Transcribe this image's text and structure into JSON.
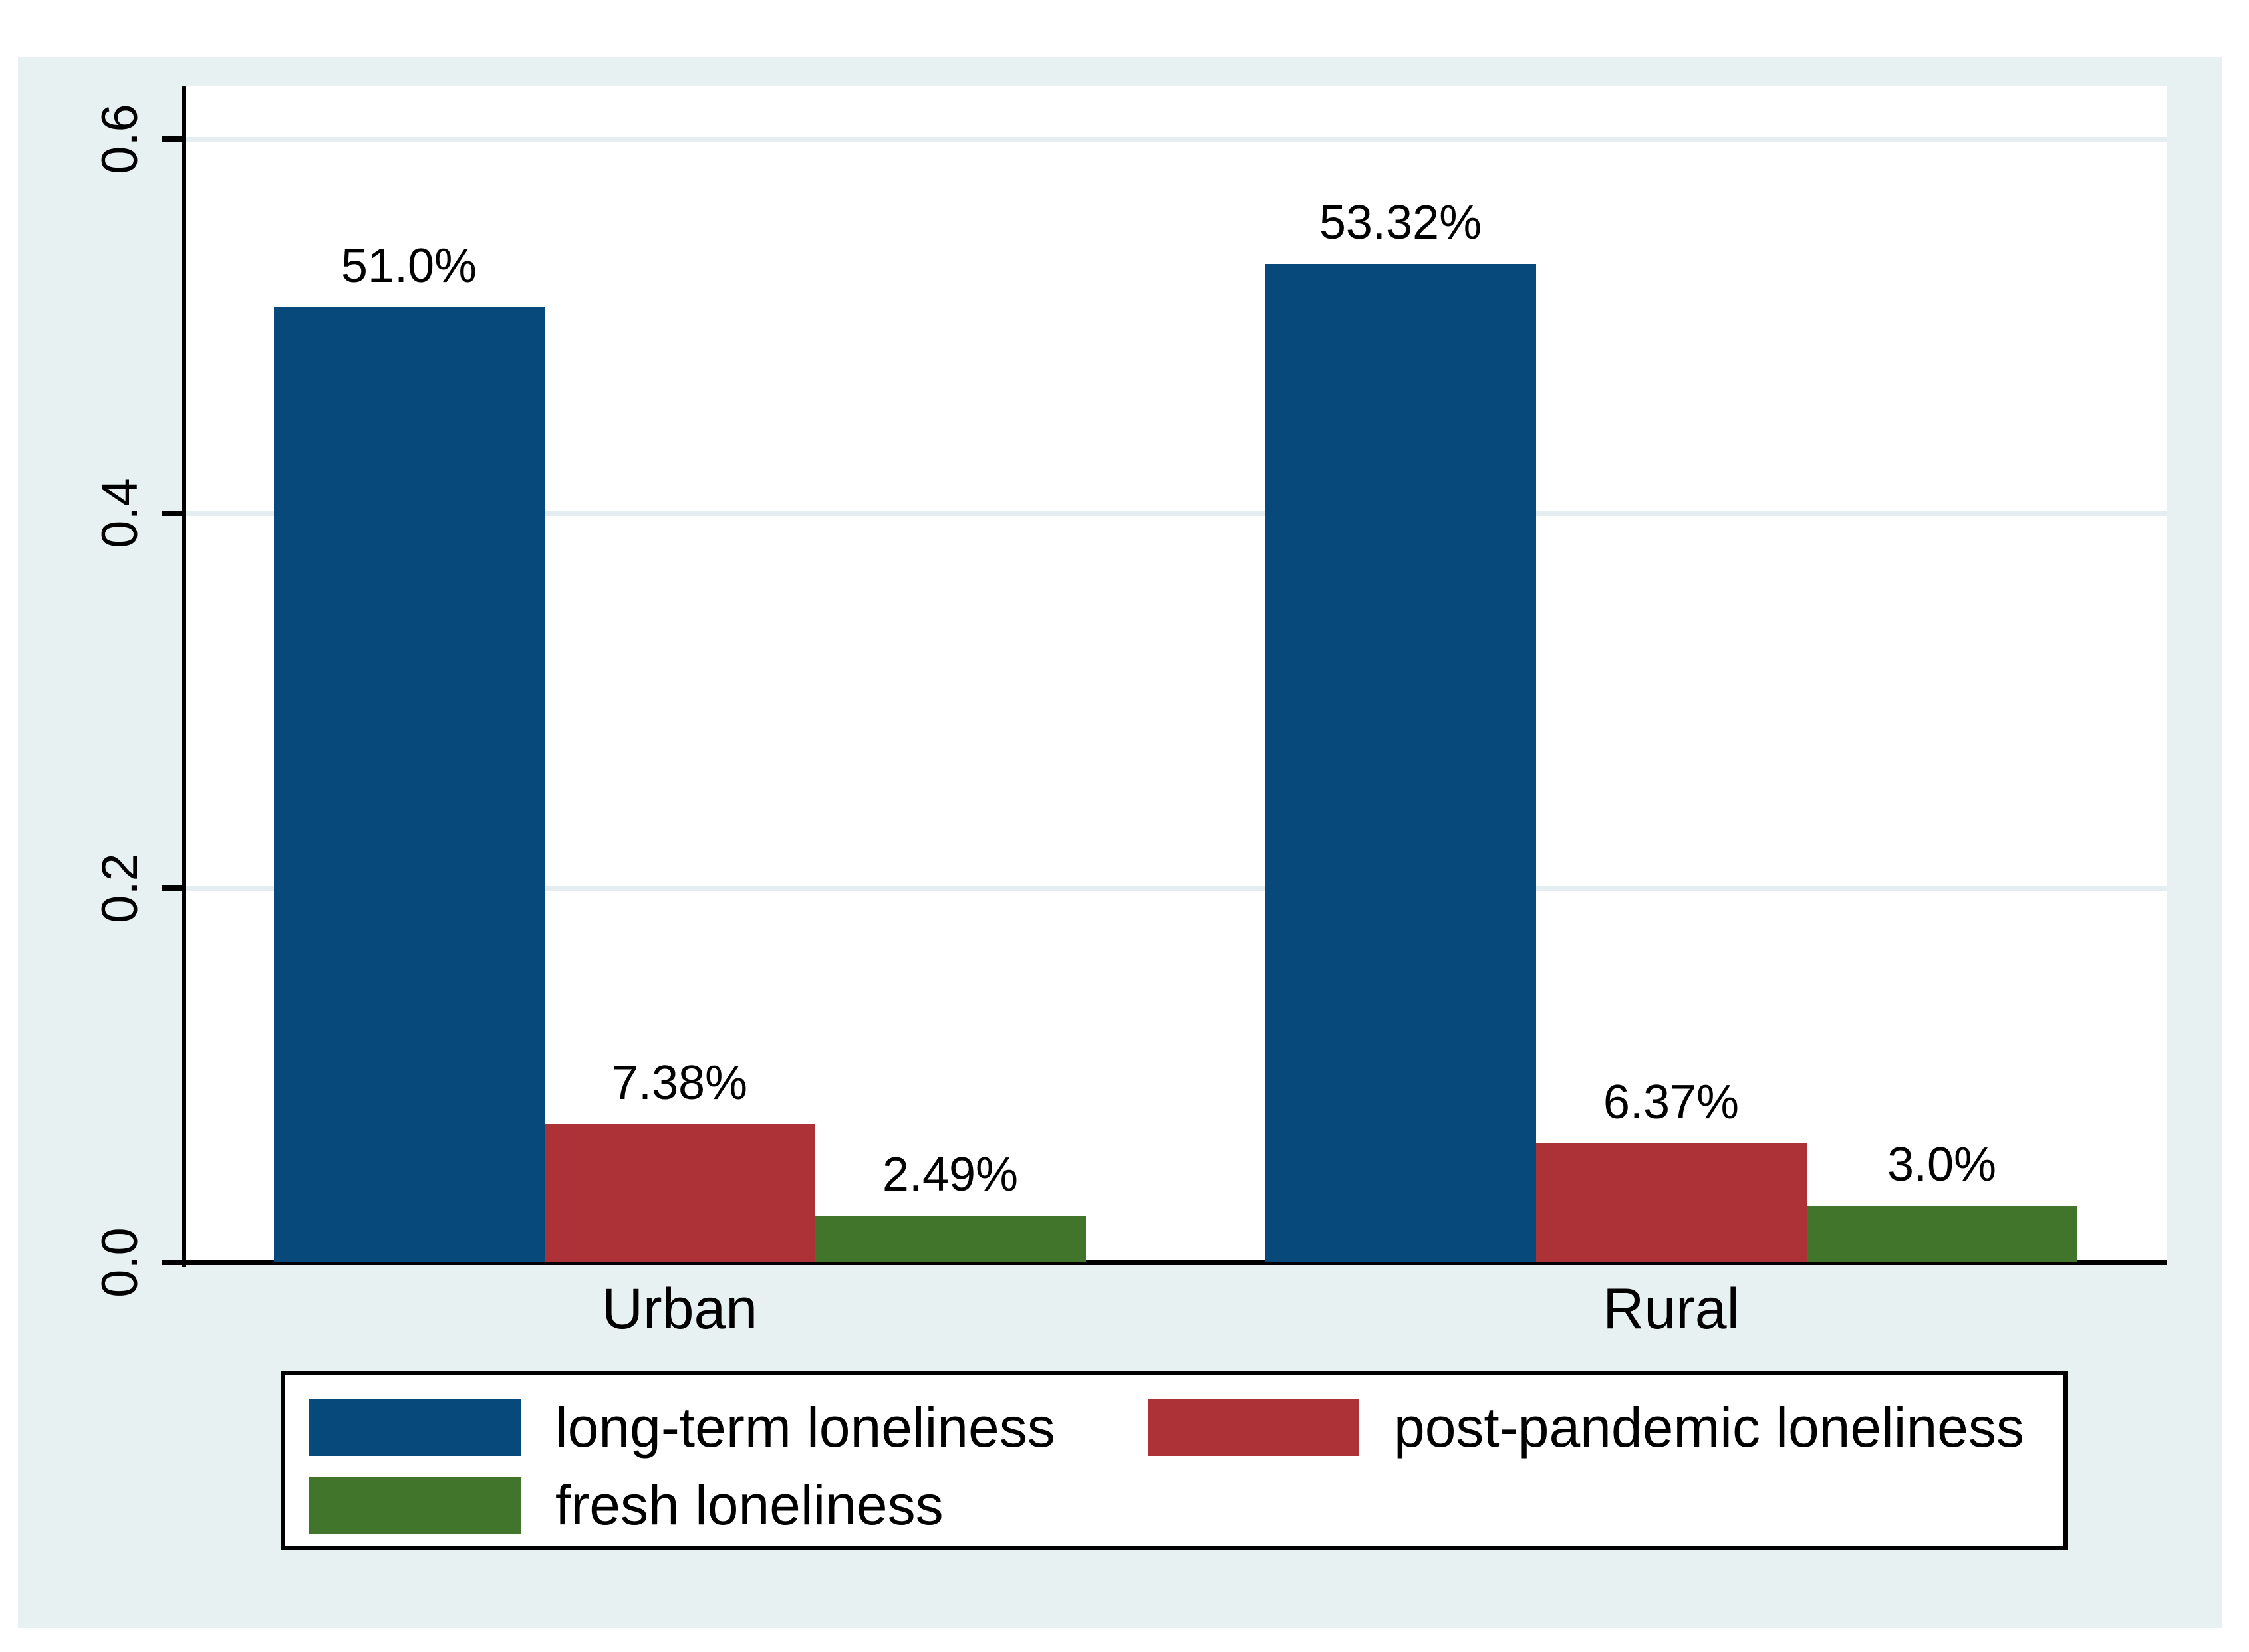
{
  "chart_data": {
    "type": "bar",
    "title": "",
    "xlabel": "",
    "ylabel": "",
    "categories": [
      "Urban",
      "Rural"
    ],
    "series": [
      {
        "name": "long-term loneliness",
        "color": "#07497B",
        "values": [
          0.51,
          0.5332
        ],
        "value_labels": [
          "51.0%",
          "53.32%"
        ]
      },
      {
        "name": "post-pandemic loneliness",
        "color": "#AD3238",
        "values": [
          0.0738,
          0.0637
        ],
        "value_labels": [
          "7.38%",
          "6.37%"
        ]
      },
      {
        "name": "fresh loneliness",
        "color": "#41752B",
        "values": [
          0.0249,
          0.03
        ],
        "value_labels": [
          "2.49%",
          "3.0%"
        ]
      }
    ],
    "y_axis": {
      "ticks": [
        {
          "label": "0.0",
          "value": 0.0
        },
        {
          "label": "0.2",
          "value": 0.2
        },
        {
          "label": "0.4",
          "value": 0.4
        },
        {
          "label": "0.6",
          "value": 0.6
        }
      ],
      "max_value_at_plot_top": 0.628
    },
    "grid": true,
    "legend_position": "bottom-outside",
    "colors": {
      "canvas_bg": "#E7F1F2",
      "plot_bg": "#FFFFFF",
      "gridline": "#E4EEF0",
      "axis": "#000000",
      "text": "#000000"
    }
  }
}
